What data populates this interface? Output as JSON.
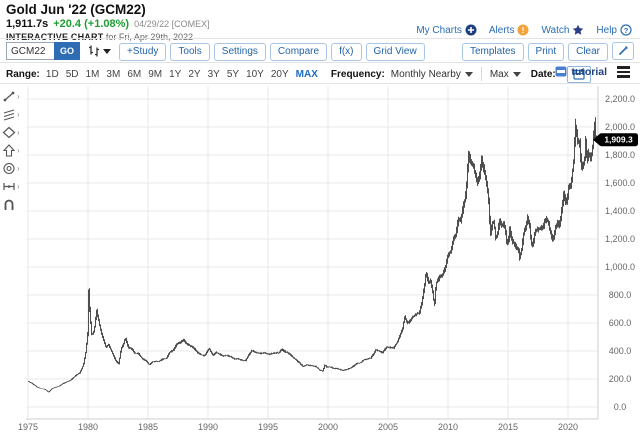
{
  "header": {
    "title": "Gold Jun '22 (GCM22)",
    "last_trade": "1,911.7s",
    "change": "+20.4 (+1.08%)",
    "quote_date_source": "04/29/22 [COMEX]",
    "chart_label": "INTERACTIVE CHART",
    "chart_for": "for Fri, Apr 29th, 2022",
    "links": [
      {
        "label": "My Charts",
        "icon": "plus-circle-icon"
      },
      {
        "label": "Alerts",
        "icon": "alert-circle-icon"
      },
      {
        "label": "Watch",
        "icon": "star-icon"
      },
      {
        "label": "Help",
        "icon": "question-circle-icon"
      }
    ]
  },
  "toolbar": {
    "symbol_value": "GCM22",
    "go_label": "GO",
    "chart_type_icon": "ohlc-bars-icon",
    "buttons_left": [
      "+Study",
      "Tools",
      "Settings",
      "Compare",
      "f(x)",
      "Grid View"
    ],
    "buttons_right": [
      "Templates",
      "Print",
      "Clear"
    ],
    "popout_icon": "pencil-icon"
  },
  "range_bar": {
    "range_label": "Range:",
    "ranges": [
      "1D",
      "5D",
      "1M",
      "3M",
      "6M",
      "9M",
      "1Y",
      "2Y",
      "3Y",
      "5Y",
      "10Y",
      "20Y",
      "MAX"
    ],
    "active_range": "MAX",
    "frequency_label": "Frequency:",
    "frequency_value": "Monthly Nearby",
    "period_value": "Max",
    "date_label": "Date:",
    "calendar_icon": "calendar-icon",
    "tutorial_label": "tutorial",
    "menu_icon": "hamburger-icon"
  },
  "chart_tools": [
    "trend-line",
    "channels",
    "shapes",
    "arrow",
    "target",
    "measure",
    "magnet"
  ],
  "colors": {
    "link_blue": "#2a6db5",
    "accent_blue": "#2e6cb4",
    "positive_green": "#1d9e32",
    "alert_orange": "#f2a33c",
    "navy_icon": "#1c3f7d",
    "bar_gray": "#3c3c3c",
    "grid_gray": "#e9e9e9",
    "tag_black": "#000000"
  },
  "chart_data": {
    "type": "ohlc-bar",
    "symbol": "GCM22",
    "frequency": "Monthly Nearby",
    "x_range": [
      1975,
      2022.37
    ],
    "y_range": [
      0,
      2200
    ],
    "grid": true,
    "y_ticks": [
      {
        "v": 2200,
        "label": "2,200.0"
      },
      {
        "v": 2000,
        "label": "2,000.0"
      },
      {
        "v": 1800,
        "label": "1,800.0"
      },
      {
        "v": 1600,
        "label": "1,600.0"
      },
      {
        "v": 1400,
        "label": "1,400.0"
      },
      {
        "v": 1200,
        "label": "1,200.0"
      },
      {
        "v": 1000,
        "label": "1,000.0"
      },
      {
        "v": 800,
        "label": "800.0"
      },
      {
        "v": 600,
        "label": "600.0"
      },
      {
        "v": 400,
        "label": "400.0"
      },
      {
        "v": 200,
        "label": "200.0"
      },
      {
        "v": 0,
        "label": "0.0"
      }
    ],
    "x_ticks": [
      {
        "v": 1975,
        "label": "1975"
      },
      {
        "v": 1980,
        "label": "1980"
      },
      {
        "v": 1985,
        "label": "1985"
      },
      {
        "v": 1990,
        "label": "1990"
      },
      {
        "v": 1995,
        "label": "1995"
      },
      {
        "v": 2000,
        "label": "2000"
      },
      {
        "v": 2005,
        "label": "2005"
      },
      {
        "v": 2010,
        "label": "2010"
      },
      {
        "v": 2015,
        "label": "2015"
      },
      {
        "v": 2020,
        "label": "2020"
      }
    ],
    "last_price": 1909.3,
    "last_price_label": "1,909.3",
    "keypoints": [
      [
        1975.0,
        183
      ],
      [
        1975.3,
        170
      ],
      [
        1975.7,
        145
      ],
      [
        1976.0,
        132
      ],
      [
        1976.4,
        127
      ],
      [
        1976.7,
        106
      ],
      [
        1977.0,
        133
      ],
      [
        1977.5,
        146
      ],
      [
        1978.0,
        172
      ],
      [
        1978.5,
        190
      ],
      [
        1978.8,
        212
      ],
      [
        1979.0,
        228
      ],
      [
        1979.3,
        243
      ],
      [
        1979.6,
        300
      ],
      [
        1979.8,
        392
      ],
      [
        1979.96,
        520
      ],
      [
        1980.04,
        845
      ],
      [
        1980.15,
        655
      ],
      [
        1980.3,
        515
      ],
      [
        1980.5,
        540
      ],
      [
        1980.7,
        695
      ],
      [
        1980.85,
        630
      ],
      [
        1981.0,
        565
      ],
      [
        1981.2,
        500
      ],
      [
        1981.5,
        425
      ],
      [
        1981.7,
        448
      ],
      [
        1982.0,
        388
      ],
      [
        1982.3,
        332
      ],
      [
        1982.55,
        308
      ],
      [
        1982.75,
        418
      ],
      [
        1982.95,
        448
      ],
      [
        1983.1,
        495
      ],
      [
        1983.35,
        425
      ],
      [
        1983.6,
        418
      ],
      [
        1983.9,
        384
      ],
      [
        1984.2,
        382
      ],
      [
        1984.5,
        345
      ],
      [
        1984.8,
        333
      ],
      [
        1985.1,
        301
      ],
      [
        1985.35,
        322
      ],
      [
        1985.6,
        328
      ],
      [
        1985.9,
        326
      ],
      [
        1986.2,
        342
      ],
      [
        1986.5,
        346
      ],
      [
        1986.8,
        392
      ],
      [
        1987.1,
        406
      ],
      [
        1987.4,
        452
      ],
      [
        1987.7,
        462
      ],
      [
        1987.95,
        482
      ],
      [
        1988.2,
        452
      ],
      [
        1988.5,
        438
      ],
      [
        1988.8,
        422
      ],
      [
        1989.1,
        390
      ],
      [
        1989.4,
        374
      ],
      [
        1989.7,
        366
      ],
      [
        1989.95,
        404
      ],
      [
        1990.1,
        416
      ],
      [
        1990.4,
        368
      ],
      [
        1990.65,
        392
      ],
      [
        1990.9,
        380
      ],
      [
        1991.2,
        364
      ],
      [
        1991.55,
        368
      ],
      [
        1991.9,
        360
      ],
      [
        1992.2,
        342
      ],
      [
        1992.5,
        344
      ],
      [
        1992.8,
        334
      ],
      [
        1993.1,
        330
      ],
      [
        1993.4,
        376
      ],
      [
        1993.65,
        404
      ],
      [
        1993.95,
        388
      ],
      [
        1994.3,
        382
      ],
      [
        1994.7,
        388
      ],
      [
        1995.1,
        377
      ],
      [
        1995.5,
        386
      ],
      [
        1995.9,
        388
      ],
      [
        1996.1,
        412
      ],
      [
        1996.45,
        393
      ],
      [
        1996.8,
        379
      ],
      [
        1997.1,
        352
      ],
      [
        1997.5,
        324
      ],
      [
        1997.9,
        290
      ],
      [
        1998.25,
        300
      ],
      [
        1998.6,
        294
      ],
      [
        1998.95,
        290
      ],
      [
        1999.3,
        264
      ],
      [
        1999.55,
        256
      ],
      [
        1999.72,
        302
      ],
      [
        1999.9,
        284
      ],
      [
        2000.15,
        287
      ],
      [
        2000.45,
        276
      ],
      [
        2000.75,
        274
      ],
      [
        2001.0,
        266
      ],
      [
        2001.25,
        260
      ],
      [
        2001.55,
        268
      ],
      [
        2001.85,
        278
      ],
      [
        2002.1,
        292
      ],
      [
        2002.4,
        312
      ],
      [
        2002.7,
        316
      ],
      [
        2002.95,
        336
      ],
      [
        2003.25,
        342
      ],
      [
        2003.55,
        350
      ],
      [
        2003.85,
        388
      ],
      [
        2003.98,
        408
      ],
      [
        2004.25,
        398
      ],
      [
        2004.55,
        390
      ],
      [
        2004.85,
        428
      ],
      [
        2005.15,
        426
      ],
      [
        2005.45,
        422
      ],
      [
        2005.75,
        462
      ],
      [
        2005.98,
        512
      ],
      [
        2006.2,
        558
      ],
      [
        2006.37,
        645
      ],
      [
        2006.5,
        622
      ],
      [
        2006.65,
        598
      ],
      [
        2006.85,
        622
      ],
      [
        2007.05,
        645
      ],
      [
        2007.35,
        665
      ],
      [
        2007.6,
        672
      ],
      [
        2007.82,
        745
      ],
      [
        2008.0,
        855
      ],
      [
        2008.18,
        965
      ],
      [
        2008.35,
        890
      ],
      [
        2008.55,
        905
      ],
      [
        2008.72,
        818
      ],
      [
        2008.85,
        722
      ],
      [
        2009.0,
        882
      ],
      [
        2009.25,
        922
      ],
      [
        2009.5,
        942
      ],
      [
        2009.75,
        992
      ],
      [
        2010.0,
        1092
      ],
      [
        2010.25,
        1115
      ],
      [
        2010.45,
        1205
      ],
      [
        2010.65,
        1235
      ],
      [
        2010.85,
        1345
      ],
      [
        2011.05,
        1335
      ],
      [
        2011.25,
        1425
      ],
      [
        2011.45,
        1505
      ],
      [
        2011.58,
        1625
      ],
      [
        2011.68,
        1828
      ],
      [
        2011.78,
        1782
      ],
      [
        2011.92,
        1742
      ],
      [
        2012.08,
        1728
      ],
      [
        2012.25,
        1662
      ],
      [
        2012.42,
        1598
      ],
      [
        2012.62,
        1652
      ],
      [
        2012.78,
        1772
      ],
      [
        2012.92,
        1712
      ],
      [
        2013.08,
        1662
      ],
      [
        2013.22,
        1592
      ],
      [
        2013.38,
        1472
      ],
      [
        2013.52,
        1232
      ],
      [
        2013.68,
        1312
      ],
      [
        2013.82,
        1322
      ],
      [
        2013.97,
        1202
      ],
      [
        2014.12,
        1242
      ],
      [
        2014.28,
        1328
      ],
      [
        2014.45,
        1292
      ],
      [
        2014.6,
        1308
      ],
      [
        2014.75,
        1282
      ],
      [
        2014.88,
        1172
      ],
      [
        2015.02,
        1182
      ],
      [
        2015.12,
        1278
      ],
      [
        2015.32,
        1182
      ],
      [
        2015.52,
        1172
      ],
      [
        2015.68,
        1132
      ],
      [
        2015.82,
        1138
      ],
      [
        2015.97,
        1062
      ],
      [
        2016.12,
        1122
      ],
      [
        2016.28,
        1232
      ],
      [
        2016.48,
        1292
      ],
      [
        2016.62,
        1352
      ],
      [
        2016.78,
        1308
      ],
      [
        2016.92,
        1172
      ],
      [
        2017.05,
        1152
      ],
      [
        2017.25,
        1252
      ],
      [
        2017.45,
        1266
      ],
      [
        2017.65,
        1272
      ],
      [
        2017.85,
        1282
      ],
      [
        2017.98,
        1302
      ],
      [
        2018.12,
        1342
      ],
      [
        2018.32,
        1326
      ],
      [
        2018.52,
        1252
      ],
      [
        2018.67,
        1202
      ],
      [
        2018.82,
        1216
      ],
      [
        2018.97,
        1282
      ],
      [
        2019.12,
        1322
      ],
      [
        2019.32,
        1292
      ],
      [
        2019.47,
        1412
      ],
      [
        2019.62,
        1522
      ],
      [
        2019.78,
        1472
      ],
      [
        2019.92,
        1472
      ],
      [
        2020.07,
        1592
      ],
      [
        2020.22,
        1582
      ],
      [
        2020.38,
        1692
      ],
      [
        2020.5,
        1782
      ],
      [
        2020.58,
        2022
      ],
      [
        2020.66,
        1972
      ],
      [
        2020.8,
        1902
      ],
      [
        2020.95,
        1892
      ],
      [
        2021.08,
        1732
      ],
      [
        2021.22,
        1712
      ],
      [
        2021.38,
        1772
      ],
      [
        2021.46,
        1902
      ],
      [
        2021.58,
        1772
      ],
      [
        2021.72,
        1812
      ],
      [
        2021.85,
        1782
      ],
      [
        2021.97,
        1802
      ],
      [
        2022.1,
        1912
      ],
      [
        2022.2,
        2042
      ],
      [
        2022.28,
        1932
      ],
      [
        2022.36,
        1909.3
      ]
    ]
  }
}
